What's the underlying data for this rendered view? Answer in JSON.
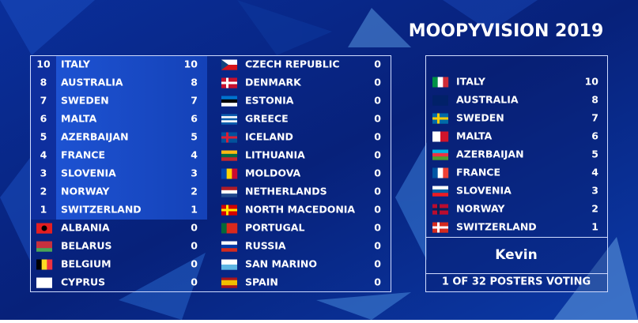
{
  "title": "MOOPYVISION 2019",
  "scoreboard": {
    "left_column": [
      {
        "points_given": 10,
        "country": "ITALY",
        "score": 10
      },
      {
        "points_given": 8,
        "country": "AUSTRALIA",
        "score": 8
      },
      {
        "points_given": 7,
        "country": "SWEDEN",
        "score": 7
      },
      {
        "points_given": 6,
        "country": "MALTA",
        "score": 6
      },
      {
        "points_given": 5,
        "country": "AZERBAIJAN",
        "score": 5
      },
      {
        "points_given": 4,
        "country": "FRANCE",
        "score": 4
      },
      {
        "points_given": 3,
        "country": "SLOVENIA",
        "score": 3
      },
      {
        "points_given": 2,
        "country": "NORWAY",
        "score": 2
      },
      {
        "points_given": 1,
        "country": "SWITZERLAND",
        "score": 1
      },
      {
        "country": "ALBANIA",
        "score": 0
      },
      {
        "country": "BELARUS",
        "score": 0
      },
      {
        "country": "BELGIUM",
        "score": 0
      },
      {
        "country": "CYPRUS",
        "score": 0
      }
    ],
    "right_column": [
      {
        "country": "CZECH REPUBLIC",
        "score": 0
      },
      {
        "country": "DENMARK",
        "score": 0
      },
      {
        "country": "ESTONIA",
        "score": 0
      },
      {
        "country": "GREECE",
        "score": 0
      },
      {
        "country": "ICELAND",
        "score": 0
      },
      {
        "country": "LITHUANIA",
        "score": 0
      },
      {
        "country": "MOLDOVA",
        "score": 0
      },
      {
        "country": "NETHERLANDS",
        "score": 0
      },
      {
        "country": "NORTH MACEDONIA",
        "score": 0
      },
      {
        "country": "PORTUGAL",
        "score": 0
      },
      {
        "country": "RUSSIA",
        "score": 0
      },
      {
        "country": "SAN MARINO",
        "score": 0
      },
      {
        "country": "SPAIN",
        "score": 0
      }
    ]
  },
  "voter_panel": {
    "votes": [
      {
        "country": "ITALY",
        "points": 10
      },
      {
        "country": "AUSTRALIA",
        "points": 8
      },
      {
        "country": "SWEDEN",
        "points": 7
      },
      {
        "country": "MALTA",
        "points": 6
      },
      {
        "country": "AZERBAIJAN",
        "points": 5
      },
      {
        "country": "FRANCE",
        "points": 4
      },
      {
        "country": "SLOVENIA",
        "points": 3
      },
      {
        "country": "NORWAY",
        "points": 2
      },
      {
        "country": "SWITZERLAND",
        "points": 1
      }
    ],
    "voter": "Kevin",
    "status": "1 OF 32 POSTERS VOTING"
  }
}
